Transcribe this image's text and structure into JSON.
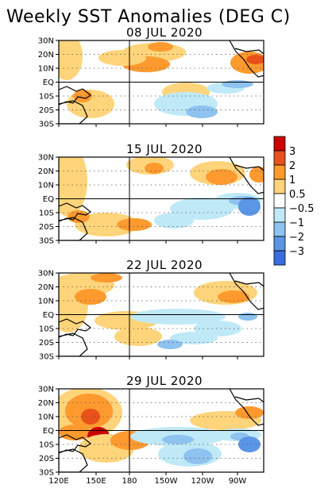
{
  "title": "Weekly SST Anomalies (DEG C)",
  "panels": [
    {
      "date": "08 JUL 2020"
    },
    {
      "date": "15 JUL 2020"
    },
    {
      "date": "22 JUL 2020"
    },
    {
      "date": "29 JUL 2020"
    }
  ],
  "y_tick_labels": [
    "30N",
    "20N",
    "10N",
    "EQ",
    "10S",
    "20S",
    "30S"
  ],
  "x_tick_labels": [
    "120E",
    "150E",
    "180",
    "150W",
    "120W",
    "90W"
  ],
  "colorbar": {
    "labels": [
      "3",
      "2",
      "1",
      "0.5",
      "−0.5",
      "−1",
      "−2",
      "−3"
    ],
    "colors": [
      "#cc0000",
      "#e8521a",
      "#ff9a2e",
      "#ffd47a",
      "#ffffff",
      "#bfe9f7",
      "#8ec2ef",
      "#5b95e6",
      "#3a6ee0"
    ]
  },
  "chart_data": {
    "type": "heatmap",
    "title": "Weekly SST Anomalies (DEG C)",
    "subplots": [
      "08 JUL 2020",
      "15 JUL 2020",
      "22 JUL 2020",
      "29 JUL 2020"
    ],
    "x_axis": {
      "ticks": [
        "120E",
        "150E",
        "180",
        "150W",
        "120W",
        "90W"
      ],
      "range": [
        "120E",
        "75W"
      ]
    },
    "y_axis": {
      "ticks": [
        "30N",
        "20N",
        "10N",
        "EQ",
        "10S",
        "20S",
        "30S"
      ],
      "range": [
        "30S",
        "30N"
      ]
    },
    "color_levels": [
      -3,
      -2,
      -1,
      -0.5,
      0.5,
      1,
      2,
      3
    ],
    "grid": true,
    "legend": "right colorbar"
  }
}
